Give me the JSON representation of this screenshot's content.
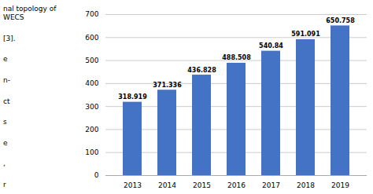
{
  "chart_data": {
    "type": "bar",
    "categories": [
      "2013",
      "2014",
      "2015",
      "2016",
      "2017",
      "2018",
      "2019"
    ],
    "values": [
      318.919,
      371.336,
      436.828,
      488.508,
      540.84,
      591.091,
      650.758
    ],
    "color": "#4472C4",
    "ylim": [
      0,
      700
    ],
    "yticks": [
      0,
      100,
      200,
      300,
      400,
      500,
      600,
      700
    ],
    "grid": true,
    "data_labels": true,
    "annotations": [
      "nal topology of WECS",
      "[3].",
      "e",
      "n-",
      "ct",
      "s",
      "e",
      ",",
      "r"
    ]
  }
}
